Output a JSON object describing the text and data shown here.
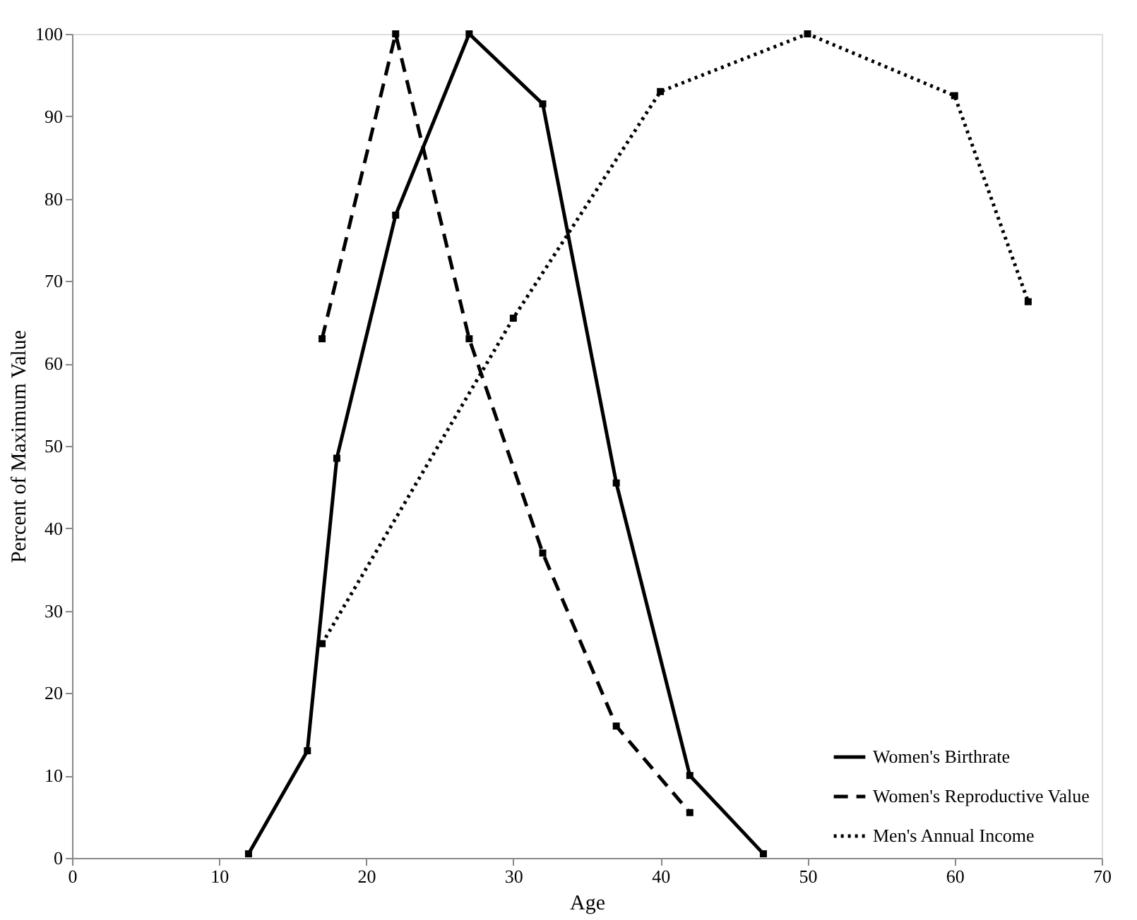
{
  "chart_data": {
    "type": "line",
    "xlabel": "Age",
    "ylabel": "Percent of Maximum Value",
    "xlim": [
      0,
      70
    ],
    "xticks": [
      0,
      10,
      20,
      30,
      40,
      50,
      60,
      70
    ],
    "ylim": [
      0,
      100
    ],
    "yticks": [
      0,
      10,
      20,
      30,
      40,
      50,
      60,
      70,
      80,
      90,
      100
    ],
    "grid": false,
    "legend": "bottom right",
    "marker": "square",
    "series": [
      {
        "name": "Women's Birthrate",
        "color": "#000000",
        "line_style": "solid",
        "x": [
          12,
          16,
          18,
          22,
          27,
          32,
          37,
          42,
          47
        ],
        "values": [
          0.5,
          13,
          48.5,
          78,
          100,
          91.5,
          45.5,
          10,
          0.5
        ]
      },
      {
        "name": "Women's Reproductive Value",
        "color": "#000000",
        "line_style": "dashed",
        "x": [
          17,
          22,
          27,
          32,
          37,
          42
        ],
        "values": [
          63,
          100,
          63,
          37,
          16,
          5.5
        ]
      },
      {
        "name": "Men's Annual Income",
        "color": "#000000",
        "line_style": "dotted",
        "x": [
          17,
          30,
          40,
          50,
          60,
          65
        ],
        "values": [
          26,
          65.5,
          93,
          100,
          92.5,
          67.5
        ]
      }
    ]
  }
}
